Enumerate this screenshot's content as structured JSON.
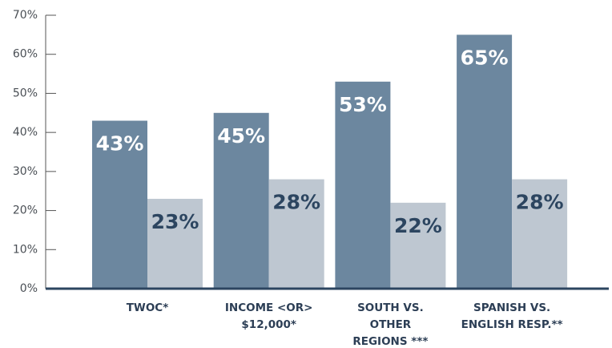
{
  "chart_data": {
    "type": "bar",
    "categories": [
      "TWOC*",
      "INCOME <OR>\n$12,000*",
      "SOUTH VS.\nOTHER\nREGIONS ***",
      "SPANISH VS.\nENGLISH RESP.**"
    ],
    "series": [
      {
        "color": "#6c879f",
        "values": [
          43,
          45,
          53,
          65
        ],
        "value_labels": [
          "43%",
          "45%",
          "53%",
          "65%"
        ],
        "label_color": "#ffffff"
      },
      {
        "color": "#bec7d1",
        "values": [
          23,
          28,
          22,
          28
        ],
        "value_labels": [
          "23%",
          "28%",
          "22%",
          "28%"
        ],
        "label_color": "#2c4560"
      }
    ],
    "ylim": [
      0,
      70
    ],
    "yticks": [
      {
        "value": 0,
        "label": "0%"
      },
      {
        "value": 10,
        "label": "10%"
      },
      {
        "value": 20,
        "label": "20%"
      },
      {
        "value": 30,
        "label": "30%"
      },
      {
        "value": 40,
        "label": "40%"
      },
      {
        "value": 50,
        "label": "50%"
      },
      {
        "value": 60,
        "label": "60%"
      },
      {
        "value": 70,
        "label": "70%"
      }
    ],
    "axis_color": "#2c4560"
  }
}
